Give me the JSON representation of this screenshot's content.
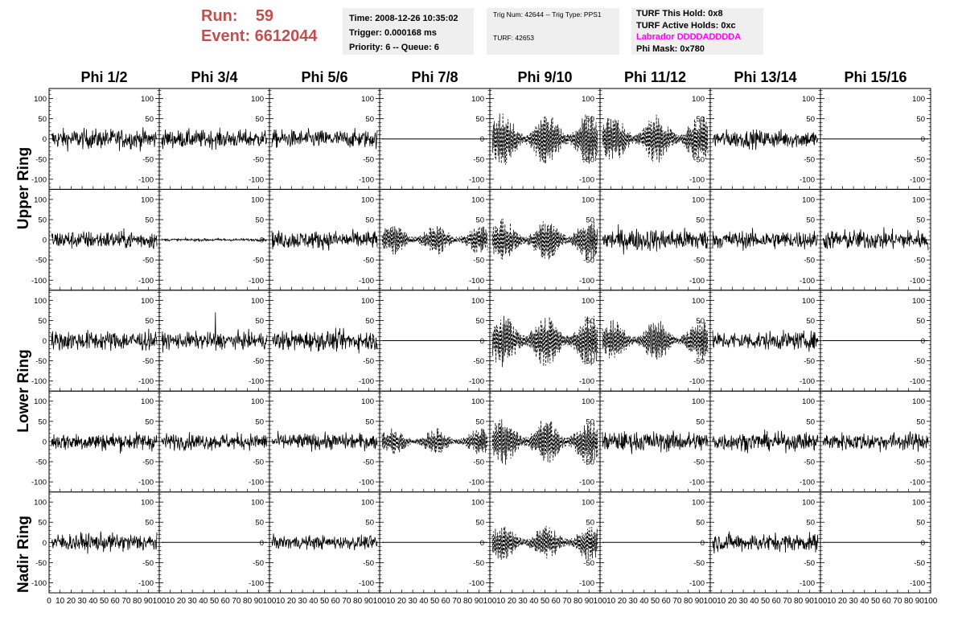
{
  "run_info": {
    "run_label": "Run:    59",
    "event_label": "Event: 6612044"
  },
  "time_box": {
    "line1": "Time: 2008-12-26 10:35:02",
    "line2": "Trigger: 0.000168 ms",
    "line3": "Priority: 6 -- Queue: 6"
  },
  "trig_box": {
    "line1": "Trig Num: 42644 -- Trig Type: PPS1",
    "line2": "TURF: 42653"
  },
  "turf_box": {
    "line1": "TURF This Hold: 0x8",
    "line2": "TURF Active Holds: 0xc",
    "line3": "Labrador DDDDADDDDA",
    "line4": "Phi Mask: 0x780"
  },
  "colors": {
    "run_text": "#c0504d",
    "labrador_text": "#ff00ff",
    "info_bg": "#efefef"
  },
  "chart_data": {
    "type": "line",
    "columns": [
      "Phi 1/2",
      "Phi 3/4",
      "Phi 5/6",
      "Phi 7/8",
      "Phi 9/10",
      "Phi 11/12",
      "Phi 13/14",
      "Phi 15/16"
    ],
    "rows": [
      "Upper Ring",
      "Upper Ring",
      "Lower Ring",
      "Lower Ring",
      "Nadir Ring"
    ],
    "row_labels": [
      "Upper Ring",
      "Lower Ring",
      "Nadir Ring"
    ],
    "xlim": [
      0,
      100
    ],
    "ylim": [
      -125,
      125
    ],
    "y_ticks": [
      -100,
      -50,
      0,
      50,
      100
    ],
    "x_ticks": [
      0,
      10,
      20,
      30,
      40,
      50,
      60,
      70,
      80,
      90,
      100
    ],
    "panels": [
      [
        "n:22",
        "n:20",
        "n:20",
        "flat",
        "d:45",
        "d:40",
        "n:20",
        "flat"
      ],
      [
        "n:20",
        "n:3",
        "n:20",
        "d:25",
        "d:35",
        "n:25",
        "n:20",
        "n:22"
      ],
      [
        "n:22",
        "spike",
        "n:22",
        "flat",
        "d:45",
        "d:35",
        "n:20",
        "flat"
      ],
      [
        "n:20",
        "n:18",
        "n:18",
        "d:22",
        "d:40",
        "n:22",
        "n:20",
        "n:20"
      ],
      [
        "n:20",
        "flat",
        "n:15",
        "flat",
        "d:30",
        "flat",
        "n:20",
        "flat"
      ]
    ]
  }
}
